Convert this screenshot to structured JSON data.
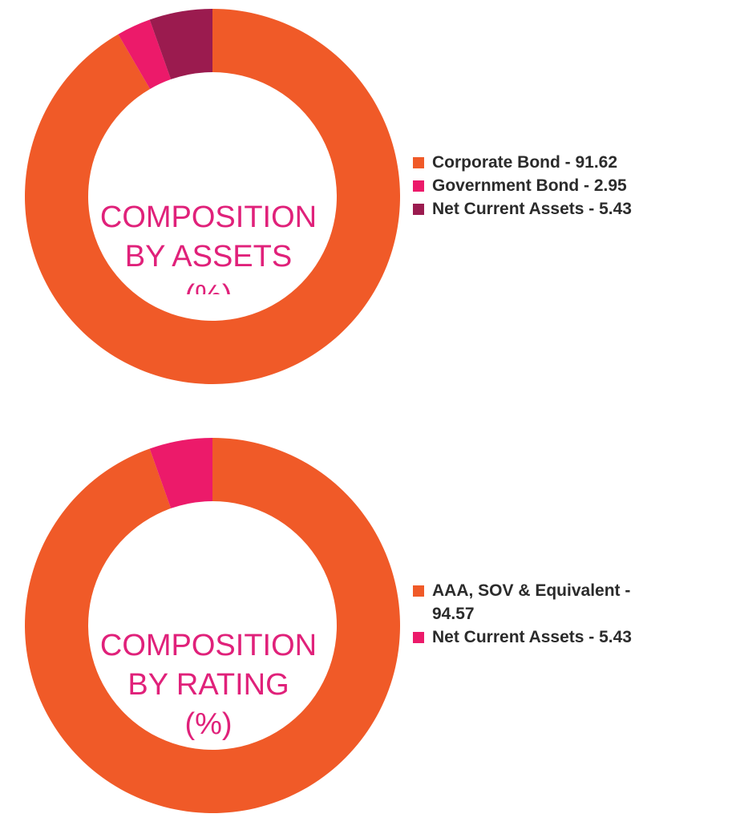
{
  "chart_data": [
    {
      "type": "pie",
      "title": "COMPOSITION BY ASSETS (%)",
      "title_lines": [
        "COMPOSITION",
        "BY ASSETS",
        "(%)"
      ],
      "labels": [
        "Corporate Bond",
        "Government Bond",
        "Net Current Assets"
      ],
      "values": [
        91.62,
        2.95,
        5.43
      ],
      "legend_text": [
        "Corporate Bond - 91.62",
        "Government Bond - 2.95",
        "Net Current Assets - 5.43"
      ],
      "colors": [
        "#f05a28",
        "#ec1a6a",
        "#9b1b4f"
      ],
      "legend": "right"
    },
    {
      "type": "pie",
      "title": "COMPOSITION BY RATING (%)",
      "title_lines": [
        "COMPOSITION",
        "BY RATING",
        "(%)"
      ],
      "labels": [
        "AAA, SOV & Equivalent",
        "Net Current Assets"
      ],
      "values": [
        94.57,
        5.43
      ],
      "legend_text": [
        "AAA, SOV & Equivalent - 94.57",
        "Net Current Assets - 5.43"
      ],
      "colors": [
        "#f05a28",
        "#ec1a6a"
      ],
      "legend": "right"
    }
  ]
}
